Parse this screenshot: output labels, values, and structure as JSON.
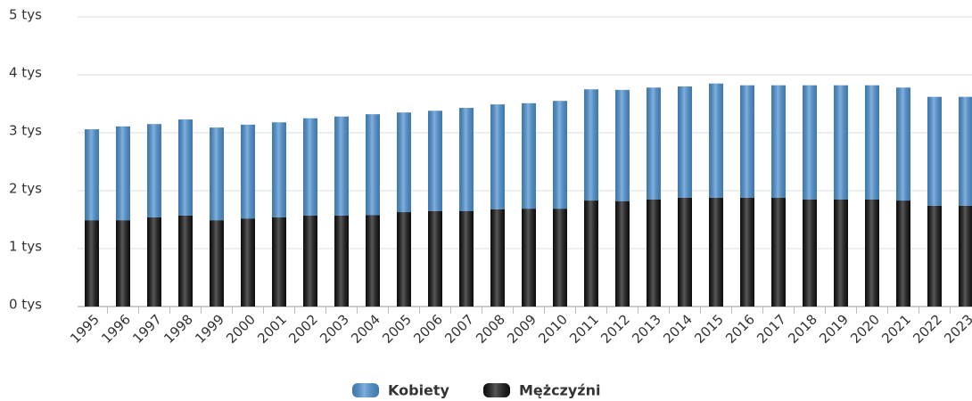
{
  "chart_data": {
    "type": "stacked_bar",
    "categories": [
      "1995",
      "1996",
      "1997",
      "1998",
      "1999",
      "2000",
      "2001",
      "2002",
      "2003",
      "2004",
      "2005",
      "2006",
      "2007",
      "2008",
      "2009",
      "2010",
      "2011",
      "2012",
      "2013",
      "2014",
      "2015",
      "2016",
      "2017",
      "2018",
      "2019",
      "2020",
      "2021",
      "2022",
      "2023"
    ],
    "series": [
      {
        "name": "Mężczyźni",
        "color": "#111111",
        "values": [
          1490,
          1490,
          1540,
          1570,
          1490,
          1520,
          1540,
          1570,
          1570,
          1580,
          1630,
          1650,
          1650,
          1680,
          1690,
          1690,
          1830,
          1820,
          1850,
          1880,
          1880,
          1880,
          1880,
          1850,
          1850,
          1850,
          1830,
          1740,
          1740
        ]
      },
      {
        "name": "Kobiety",
        "color": "#4a8fd0",
        "values": [
          1570,
          1620,
          1610,
          1660,
          1600,
          1620,
          1640,
          1680,
          1710,
          1740,
          1720,
          1730,
          1780,
          1810,
          1820,
          1860,
          1920,
          1920,
          1930,
          1920,
          1970,
          1940,
          1940,
          1970,
          1970,
          1970,
          1950,
          1880,
          1880
        ]
      }
    ],
    "legend_order": [
      1,
      0
    ],
    "ylim": [
      0,
      5000
    ],
    "yticks": [
      {
        "value": 0,
        "label": "0 tys"
      },
      {
        "value": 1000,
        "label": "1 tys"
      },
      {
        "value": 2000,
        "label": "2 tys"
      },
      {
        "value": 3000,
        "label": "3 tys"
      },
      {
        "value": 4000,
        "label": "4 tys"
      },
      {
        "value": 5000,
        "label": "5 tys"
      }
    ],
    "grid": true
  }
}
